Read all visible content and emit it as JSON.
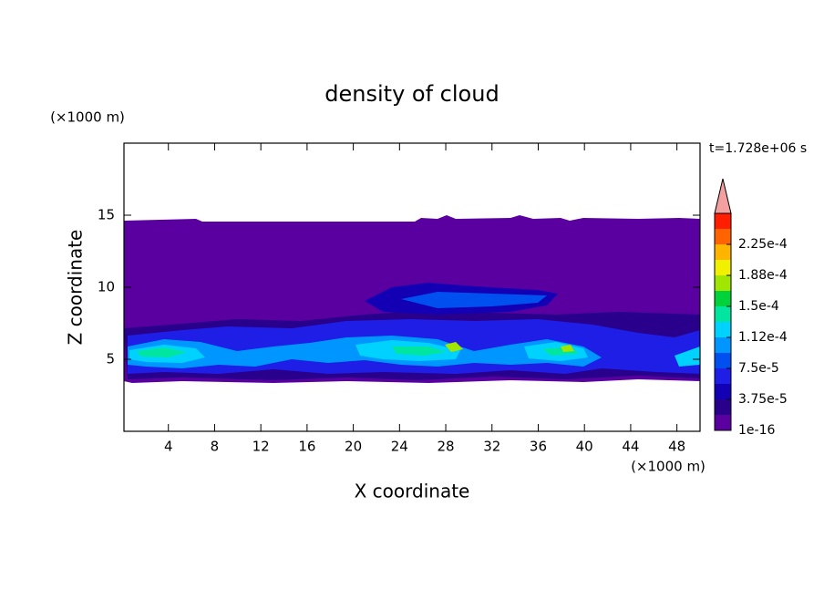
{
  "chart_data": {
    "type": "contour",
    "title": "density of cloud",
    "x_label": "X coordinate",
    "y_label": "Z coordinate",
    "x_unit": "(×1000 m)",
    "y_unit": "(×1000 m)",
    "time_label": "t=1.728e+06 s",
    "xlim": [
      0,
      50
    ],
    "ylim": [
      0,
      20
    ],
    "xticks": [
      4,
      8,
      12,
      16,
      20,
      24,
      28,
      32,
      36,
      40,
      44,
      48
    ],
    "yticks": [
      5,
      10,
      15
    ],
    "colorbar": {
      "ticks": [
        {
          "value": 1e-16,
          "label": "1e-16"
        },
        {
          "value": 3.75e-05,
          "label": "3.75e-5"
        },
        {
          "value": 7.5e-05,
          "label": "7.5e-5"
        },
        {
          "value": 0.000112,
          "label": "1.12e-4"
        },
        {
          "value": 0.00015,
          "label": "1.5e-4"
        },
        {
          "value": 0.000188,
          "label": "1.88e-4"
        },
        {
          "value": 0.000225,
          "label": "2.25e-4"
        }
      ],
      "colors": [
        "#5a00a0",
        "#28008c",
        "#1400b4",
        "#1e1ee6",
        "#0050f0",
        "#0096ff",
        "#00d2ff",
        "#00e6a0",
        "#00d23c",
        "#a0e600",
        "#f0f000",
        "#ffb400",
        "#ff6400",
        "#ff1e00"
      ],
      "over_color": "#f4a0a0"
    }
  }
}
